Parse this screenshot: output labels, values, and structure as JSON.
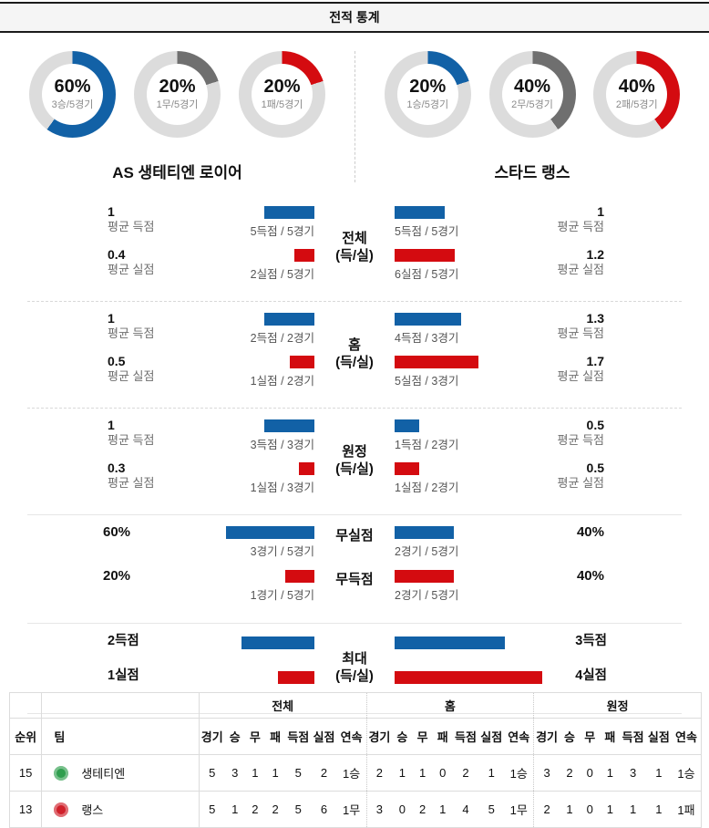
{
  "header": {
    "title": "전적 통계"
  },
  "colors": {
    "blue": "#1261a6",
    "gray": "#6f6f6f",
    "red": "#d40b10",
    "track": "#dcdcdc"
  },
  "teams": {
    "left": {
      "name": "AS 생테티엔 로이어",
      "donuts": [
        {
          "kind": "win",
          "pct": "60%",
          "sub": "3승/5경기",
          "value": 60,
          "color": "#1261a6"
        },
        {
          "kind": "draw",
          "pct": "20%",
          "sub": "1무/5경기",
          "value": 20,
          "color": "#6f6f6f"
        },
        {
          "kind": "loss",
          "pct": "20%",
          "sub": "1패/5경기",
          "value": 20,
          "color": "#d40b10"
        }
      ]
    },
    "right": {
      "name": "스타드 랭스",
      "donuts": [
        {
          "kind": "win",
          "pct": "20%",
          "sub": "1승/5경기",
          "value": 20,
          "color": "#1261a6"
        },
        {
          "kind": "draw",
          "pct": "40%",
          "sub": "2무/5경기",
          "value": 40,
          "color": "#6f6f6f"
        },
        {
          "kind": "loss",
          "pct": "40%",
          "sub": "2패/5경기",
          "value": 40,
          "color": "#d40b10"
        }
      ]
    }
  },
  "sections": {
    "duo": [
      {
        "title": "전체",
        "sub": "(득/실)",
        "left": {
          "r0": {
            "value": "1",
            "label": "평균 득점",
            "bar": "5득점 / 5경기",
            "w": 55,
            "color": "#1261a6"
          },
          "r1": {
            "value": "0.4",
            "label": "평균 실점",
            "bar": "2실점 / 5경기",
            "w": 22,
            "color": "#d40b10"
          }
        },
        "right": {
          "r0": {
            "value": "1",
            "label": "평균 득점",
            "bar": "5득점 / 5경기",
            "w": 55,
            "color": "#1261a6"
          },
          "r1": {
            "value": "1.2",
            "label": "평균 실점",
            "bar": "6실점 / 5경기",
            "w": 66,
            "color": "#d40b10"
          }
        }
      },
      {
        "title": "홈",
        "sub": "(득/실)",
        "left": {
          "r0": {
            "value": "1",
            "label": "평균 득점",
            "bar": "2득점 / 2경기",
            "w": 55,
            "color": "#1261a6"
          },
          "r1": {
            "value": "0.5",
            "label": "평균 실점",
            "bar": "1실점 / 2경기",
            "w": 27,
            "color": "#d40b10"
          }
        },
        "right": {
          "r0": {
            "value": "1.3",
            "label": "평균 득점",
            "bar": "4득점 / 3경기",
            "w": 73,
            "color": "#1261a6"
          },
          "r1": {
            "value": "1.7",
            "label": "평균 실점",
            "bar": "5실점 / 3경기",
            "w": 92,
            "color": "#d40b10"
          }
        }
      },
      {
        "title": "원정",
        "sub": "(득/실)",
        "left": {
          "r0": {
            "value": "1",
            "label": "평균 득점",
            "bar": "3득점 / 3경기",
            "w": 55,
            "color": "#1261a6"
          },
          "r1": {
            "value": "0.3",
            "label": "평균 실점",
            "bar": "1실점 / 3경기",
            "w": 17,
            "color": "#d40b10"
          }
        },
        "right": {
          "r0": {
            "value": "0.5",
            "label": "평균 득점",
            "bar": "1득점 / 2경기",
            "w": 27,
            "color": "#1261a6"
          },
          "r1": {
            "value": "0.5",
            "label": "평균 실점",
            "bar": "1실점 / 2경기",
            "w": 27,
            "color": "#d40b10"
          }
        }
      }
    ],
    "pct": [
      {
        "label": "무실점",
        "left_pct": "60%",
        "left_bar": "3경기 / 5경기",
        "left_w": 97,
        "right_bar": "2경기 / 5경기",
        "right_w": 65,
        "right_pct": "40%",
        "color": "#1261a6"
      },
      {
        "label": "무득점",
        "left_pct": "20%",
        "left_bar": "1경기 / 5경기",
        "left_w": 32,
        "right_bar": "2경기 / 5경기",
        "right_w": 65,
        "right_pct": "40%",
        "color": "#d40b10"
      }
    ],
    "max": {
      "title": "최대",
      "sub": "(득/실)",
      "left": {
        "r0": {
          "value": "2득점",
          "w": 80,
          "color": "#1261a6"
        },
        "r1": {
          "value": "1실점",
          "w": 40,
          "color": "#d40b10"
        }
      },
      "right": {
        "r0": {
          "value": "3득점",
          "w": 121,
          "color": "#1261a6"
        },
        "r1": {
          "value": "4실점",
          "w": 162,
          "color": "#d40b10"
        }
      }
    }
  },
  "table": {
    "group_headers": {
      "overall": "전체",
      "home": "홈",
      "away": "원정"
    },
    "col_headers": {
      "rank": "순위",
      "team": "팀",
      "cols": [
        "경기",
        "승",
        "무",
        "패",
        "득점",
        "실점",
        "연속"
      ]
    },
    "rows": [
      {
        "rank": "15",
        "team": "생테티엔",
        "logo_color": "#2f9e4e",
        "overall": [
          "5",
          "3",
          "1",
          "1",
          "5",
          "2",
          "1승"
        ],
        "home": [
          "2",
          "1",
          "1",
          "0",
          "2",
          "1",
          "1승"
        ],
        "away": [
          "3",
          "2",
          "0",
          "1",
          "3",
          "1",
          "1승"
        ]
      },
      {
        "rank": "13",
        "team": "랭스",
        "logo_color": "#d0202a",
        "overall": [
          "5",
          "1",
          "2",
          "2",
          "5",
          "6",
          "1무"
        ],
        "home": [
          "3",
          "0",
          "2",
          "1",
          "4",
          "5",
          "1무"
        ],
        "away": [
          "2",
          "1",
          "0",
          "1",
          "1",
          "1",
          "1패"
        ]
      }
    ]
  }
}
